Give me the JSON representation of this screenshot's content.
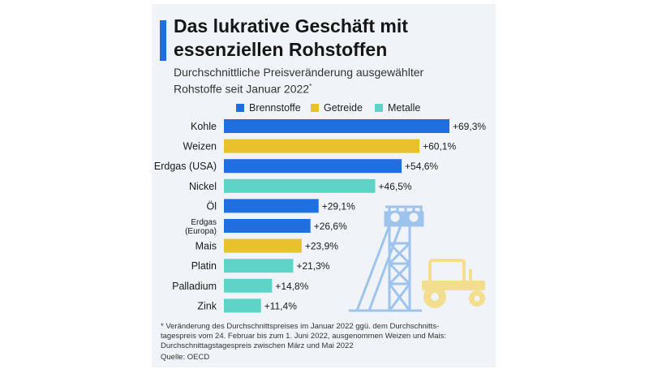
{
  "header": {
    "title_line1": "Das lukrative Geschäft mit",
    "title_line2": "essenziellen Rohstoffen",
    "subtitle_line1": "Durchschnittliche Preisveränderung ausgewählter",
    "subtitle_line2": "Rohstoffe seit Januar 2022",
    "subtitle_mark": "*"
  },
  "colors": {
    "Brennstoffe": "#1f6fe0",
    "Getreide": "#e8c22a",
    "Metalle": "#5fd3c5",
    "illustration": "#9ec4ee",
    "tractor": "#f3dd8f"
  },
  "chart_data": {
    "type": "bar",
    "orientation": "horizontal",
    "legend": [
      {
        "name": "Brennstoffe",
        "color": "#1f6fe0"
      },
      {
        "name": "Getreide",
        "color": "#e8c22a"
      },
      {
        "name": "Metalle",
        "color": "#5fd3c5"
      }
    ],
    "legend_position": "top",
    "grid": false,
    "xlim": [
      0,
      69.3
    ],
    "categories": [
      {
        "label": "Kohle",
        "group": "Brennstoffe",
        "value": 69.3,
        "value_label": "+69,3%"
      },
      {
        "label": "Weizen",
        "group": "Getreide",
        "value": 60.1,
        "value_label": "+60,1%"
      },
      {
        "label": "Erdgas (USA)",
        "group": "Brennstoffe",
        "value": 54.6,
        "value_label": "+54,6%"
      },
      {
        "label": "Nickel",
        "group": "Metalle",
        "value": 46.5,
        "value_label": "+46,5%"
      },
      {
        "label": "Öl",
        "group": "Brennstoffe",
        "value": 29.1,
        "value_label": "+29,1%"
      },
      {
        "label": "Erdgas\n(Europa)",
        "group": "Brennstoffe",
        "value": 26.6,
        "value_label": "+26,6%"
      },
      {
        "label": "Mais",
        "group": "Getreide",
        "value": 23.9,
        "value_label": "+23,9%"
      },
      {
        "label": "Platin",
        "group": "Metalle",
        "value": 21.3,
        "value_label": "+21,3%"
      },
      {
        "label": "Palladium",
        "group": "Metalle",
        "value": 14.8,
        "value_label": "+14,8%"
      },
      {
        "label": "Zink",
        "group": "Metalle",
        "value": 11.4,
        "value_label": "+11,4%"
      }
    ]
  },
  "footnote": {
    "line1": "* Veränderung des Durchschnittspreises im Januar 2022 ggü. dem Durchschnitts-",
    "line2": "tagespreis vom 24. Februar bis zum 1. Juni 2022, ausgenommen Weizen und Mais:",
    "line3": "Durchschnittagstagespreis zwischen März und Mai 2022"
  },
  "source": "Quelle: OECD"
}
